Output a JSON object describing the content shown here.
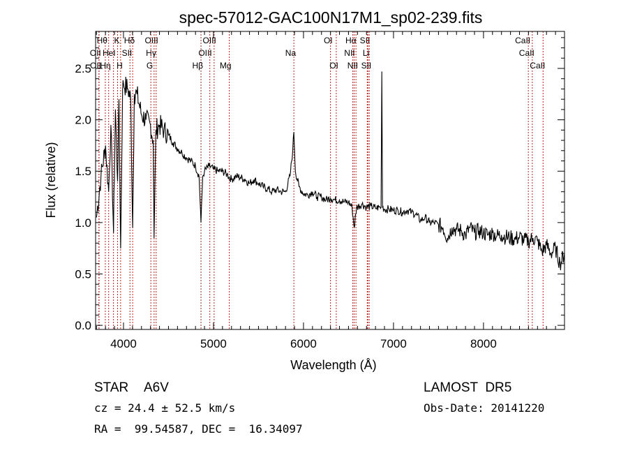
{
  "chart_data": {
    "type": "line",
    "title": "spec-57012-GAC100N17M1_sp02-239.fits",
    "xlabel": "Wavelength (Å)",
    "ylabel": "Flux (relative)",
    "xlim": [
      3690,
      8900
    ],
    "ylim": [
      -0.04,
      2.86
    ],
    "xticks": [
      4000,
      5000,
      6000,
      7000,
      8000
    ],
    "xtick_labels": [
      "4000",
      "5000",
      "6000",
      "7000",
      "8000"
    ],
    "yticks": [
      0.0,
      0.5,
      1.0,
      1.5,
      2.0,
      2.5
    ],
    "ytick_labels": [
      "0.0",
      "0.5",
      "1.0",
      "1.5",
      "2.0",
      "2.5"
    ],
    "grid": false,
    "series": [
      {
        "name": "flux",
        "color": "#000000",
        "x": [
          3700,
          3750,
          3800,
          3835,
          3860,
          3889,
          3910,
          3934,
          3950,
          3968,
          3990,
          4000,
          4050,
          4080,
          4102,
          4120,
          4150,
          4200,
          4250,
          4300,
          4330,
          4340,
          4360,
          4400,
          4450,
          4500,
          4550,
          4600,
          4650,
          4700,
          4750,
          4800,
          4840,
          4861,
          4880,
          4900,
          4950,
          5000,
          5050,
          5100,
          5150,
          5200,
          5250,
          5300,
          5350,
          5400,
          5450,
          5500,
          5550,
          5600,
          5650,
          5700,
          5750,
          5800,
          5850,
          5880,
          5893,
          5910,
          5950,
          6000,
          6050,
          6100,
          6150,
          6200,
          6250,
          6300,
          6350,
          6400,
          6450,
          6500,
          6540,
          6563,
          6590,
          6650,
          6700,
          6750,
          6800,
          6850,
          6862,
          6870,
          6878,
          6900,
          6950,
          7000,
          7050,
          7100,
          7150,
          7200,
          7250,
          7300,
          7350,
          7400,
          7450,
          7500,
          7550,
          7600,
          7650,
          7700,
          7750,
          7800,
          7850,
          7900,
          7950,
          8000,
          8050,
          8100,
          8150,
          8200,
          8250,
          8300,
          8350,
          8400,
          8450,
          8500,
          8550,
          8600,
          8650,
          8700,
          8750,
          8800,
          8850,
          8900
        ],
        "y": [
          1.05,
          1.45,
          1.75,
          1.3,
          1.95,
          0.9,
          2.1,
          1.4,
          2.2,
          0.75,
          2.3,
          2.35,
          2.3,
          2.2,
          0.95,
          2.25,
          2.25,
          2.05,
          2.0,
          1.95,
          1.8,
          0.85,
          1.9,
          1.95,
          1.9,
          1.85,
          1.78,
          1.72,
          1.68,
          1.63,
          1.6,
          1.55,
          1.45,
          1.0,
          1.45,
          1.5,
          1.55,
          1.52,
          1.5,
          1.5,
          1.47,
          1.42,
          1.45,
          1.44,
          1.42,
          1.38,
          1.42,
          1.38,
          1.35,
          1.33,
          1.3,
          1.32,
          1.3,
          1.3,
          1.45,
          1.7,
          1.88,
          1.5,
          1.35,
          1.28,
          1.27,
          1.3,
          1.25,
          1.25,
          1.22,
          1.24,
          1.22,
          1.22,
          1.2,
          1.2,
          1.15,
          0.95,
          1.15,
          1.18,
          1.15,
          1.16,
          1.14,
          1.15,
          1.15,
          2.47,
          1.15,
          1.13,
          1.13,
          1.12,
          1.12,
          1.1,
          1.12,
          1.1,
          1.08,
          1.02,
          1.05,
          1.0,
          1.0,
          0.98,
          0.95,
          0.85,
          0.95,
          0.93,
          0.92,
          0.88,
          0.95,
          0.9,
          0.92,
          0.9,
          0.88,
          0.9,
          0.87,
          0.88,
          0.86,
          0.85,
          0.84,
          0.86,
          0.83,
          0.82,
          0.85,
          0.82,
          0.72,
          0.78,
          0.7,
          0.75,
          0.6,
          0.7
        ]
      }
    ],
    "line_markers": {
      "color": "#b22222",
      "lines": [
        {
          "label": "Hθ",
          "wavelength": 3798,
          "row": 1
        },
        {
          "label": "K",
          "wavelength": 3934,
          "row": 1
        },
        {
          "label": "Hδ",
          "wavelength": 4102,
          "row": 1
        },
        {
          "label": "OIII",
          "wavelength": 4363,
          "row": 1
        },
        {
          "label": "OIII",
          "wavelength": 5007,
          "row": 1
        },
        {
          "label": "OI",
          "wavelength": 6300,
          "row": 1
        },
        {
          "label": "Hα",
          "wavelength": 6563,
          "row": 1
        },
        {
          "label": "SII",
          "wavelength": 6716,
          "row": 1
        },
        {
          "label": "CaII",
          "wavelength": 8498,
          "row": 1
        },
        {
          "label": "OII",
          "wavelength": 3727,
          "row": 2
        },
        {
          "label": "HeI",
          "wavelength": 3889,
          "row": 2
        },
        {
          "label": "SII",
          "wavelength": 4072,
          "row": 2
        },
        {
          "label": "Hγ",
          "wavelength": 4340,
          "row": 2
        },
        {
          "label": "OIII",
          "wavelength": 4959,
          "row": 2
        },
        {
          "label": "Na",
          "wavelength": 5893,
          "row": 2
        },
        {
          "label": "NII",
          "wavelength": 6548,
          "row": 2
        },
        {
          "label": "Li",
          "wavelength": 6708,
          "row": 2
        },
        {
          "label": "CaII",
          "wavelength": 8542,
          "row": 2
        },
        {
          "label": "OII",
          "wavelength": 3729,
          "row": 3
        },
        {
          "label": "Hη",
          "wavelength": 3835,
          "row": 3
        },
        {
          "label": "H",
          "wavelength": 3968,
          "row": 3
        },
        {
          "label": "G",
          "wavelength": 4304,
          "row": 3
        },
        {
          "label": "Hβ",
          "wavelength": 4861,
          "row": 3
        },
        {
          "label": "Mg",
          "wavelength": 5175,
          "row": 3
        },
        {
          "label": "OI",
          "wavelength": 6364,
          "row": 3
        },
        {
          "label": "NII",
          "wavelength": 6583,
          "row": 3
        },
        {
          "label": "SII",
          "wavelength": 6731,
          "row": 3
        },
        {
          "label": "CaII",
          "wavelength": 8662,
          "row": 3
        }
      ]
    }
  },
  "info": {
    "object_class": "STAR",
    "subclass": "A6V",
    "survey": "LAMOST  DR5",
    "redshift": "cz = 24.4 ± 52.5 km/s",
    "obs_date": "Obs-Date: 20141220",
    "coords": "RA =  99.54587, DEC =  16.34097"
  }
}
